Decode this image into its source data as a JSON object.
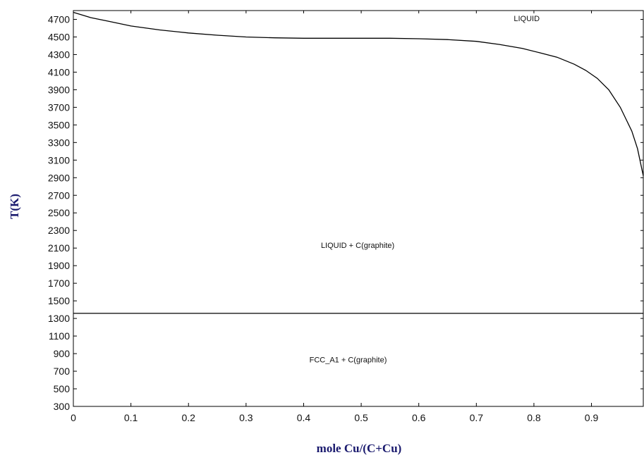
{
  "chart_data": {
    "type": "line",
    "xlabel": "mole Cu/(C+Cu)",
    "ylabel": "T(K)",
    "xlim": [
      0,
      0.99
    ],
    "ylim": [
      300,
      4800
    ],
    "x_ticks": [
      "0",
      "0.1",
      "0.2",
      "0.3",
      "0.4",
      "0.5",
      "0.6",
      "0.7",
      "0.8",
      "0.9"
    ],
    "y_ticks": [
      "300",
      "500",
      "700",
      "900",
      "1100",
      "1300",
      "1500",
      "1700",
      "1900",
      "2100",
      "2300",
      "2500",
      "2700",
      "2900",
      "3100",
      "3300",
      "3500",
      "3700",
      "3900",
      "4100",
      "4300",
      "4500",
      "4700"
    ],
    "grid": false,
    "series": [
      {
        "x": [
          0,
          0.03,
          0.06,
          0.1,
          0.15,
          0.2,
          0.25,
          0.3,
          0.35,
          0.4,
          0.45,
          0.5,
          0.55,
          0.6,
          0.65,
          0.7,
          0.74,
          0.78,
          0.81,
          0.84,
          0.87,
          0.89,
          0.91,
          0.93,
          0.95,
          0.97,
          0.98,
          0.99
        ],
        "y": [
          4780,
          4720,
          4680,
          4625,
          4580,
          4545,
          4520,
          4500,
          4490,
          4485,
          4485,
          4485,
          4485,
          4480,
          4470,
          4450,
          4415,
          4370,
          4320,
          4270,
          4190,
          4120,
          4030,
          3900,
          3700,
          3430,
          3230,
          2920
        ],
        "color": "#000000"
      },
      {
        "x": [
          0,
          0.99
        ],
        "y": [
          1358,
          1358
        ],
        "color": "#000000"
      }
    ],
    "annotations": [
      {
        "text": "LIQUID",
        "x": 0.765,
        "y": 4680
      },
      {
        "text": "LIQUID + C(graphite)",
        "x": 0.43,
        "y": 2100
      },
      {
        "text": "FCC_A1 + C(graphite)",
        "x": 0.41,
        "y": 800
      }
    ]
  }
}
